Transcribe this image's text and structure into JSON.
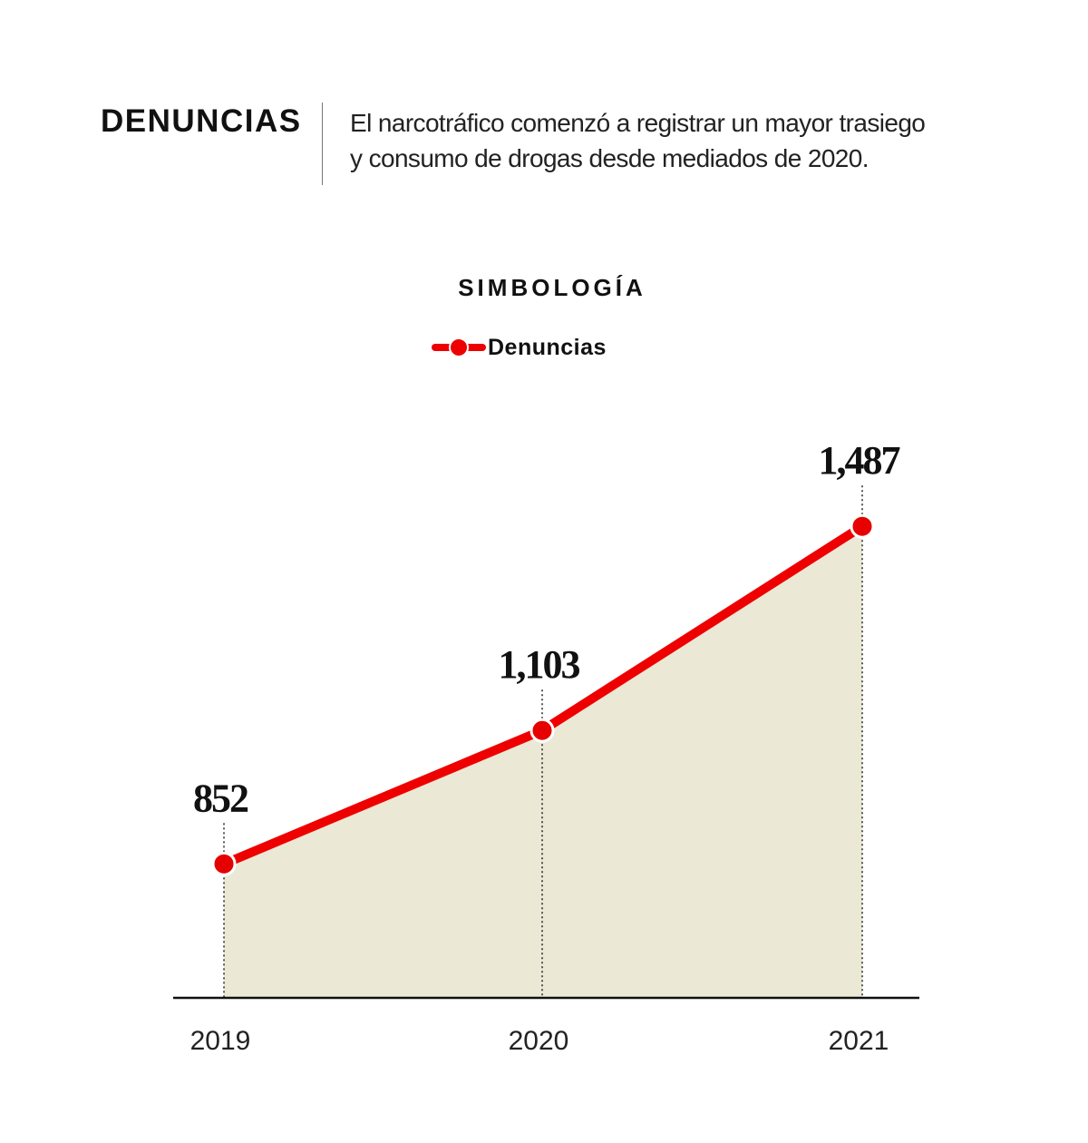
{
  "header": {
    "title": "DENUNCIAS",
    "subtitle_line1": "El narcotráfico comenzó a registrar un mayor trasiego",
    "subtitle_line2": "y consumo de drogas desde mediados de 2020."
  },
  "legend": {
    "title": "SIMBOLOGÍA",
    "label": "Denuncias"
  },
  "colors": {
    "line": "#ee0000",
    "area": "#ebe8d6",
    "axis": "#111111"
  },
  "chart_data": {
    "type": "area",
    "title": "DENUNCIAS",
    "xlabel": "",
    "ylabel": "",
    "categories": [
      "2019",
      "2020",
      "2021"
    ],
    "series": [
      {
        "name": "Denuncias",
        "values": [
          852,
          1103,
          1487
        ]
      }
    ],
    "data_labels": [
      "852",
      "1,103",
      "1,487"
    ],
    "ylim": [
      600,
      1500
    ],
    "grid": false,
    "legend_position": "top-center"
  }
}
